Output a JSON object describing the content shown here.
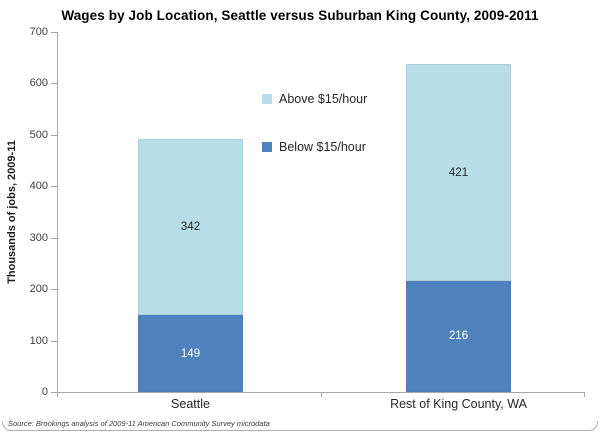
{
  "title": "Wages by Job Location, Seattle versus Suburban King County, 2009-2011",
  "source_note": "Source: Brookings analysis of 2009-11 American Community Survey microdata",
  "chart_data": {
    "type": "bar",
    "stacked": true,
    "title": "Wages by Job Location, Seattle versus Suburban King County, 2009-2011",
    "xlabel": "",
    "ylabel": "Thousands of jobs, 2009-11",
    "categories": [
      "Seattle",
      "Rest of King County, WA"
    ],
    "series": [
      {
        "name": "Below $15/hour",
        "values": [
          149,
          216
        ],
        "color": "#4f81bd",
        "label_color": "#ffffff"
      },
      {
        "name": "Above $15/hour",
        "values": [
          342,
          421
        ],
        "color": "#b7dde8",
        "label_color": "#262626"
      }
    ],
    "legend": [
      {
        "label": "Above $15/hour",
        "color": "#b7dde8"
      },
      {
        "label": "Below $15/hour",
        "color": "#4f81bd"
      }
    ],
    "legend_position": "inside-center-left",
    "ylim": [
      0,
      700
    ],
    "yticks": [
      0,
      100,
      200,
      300,
      400,
      500,
      600,
      700
    ],
    "grid": false,
    "axis_color": "#a6a6a6"
  }
}
